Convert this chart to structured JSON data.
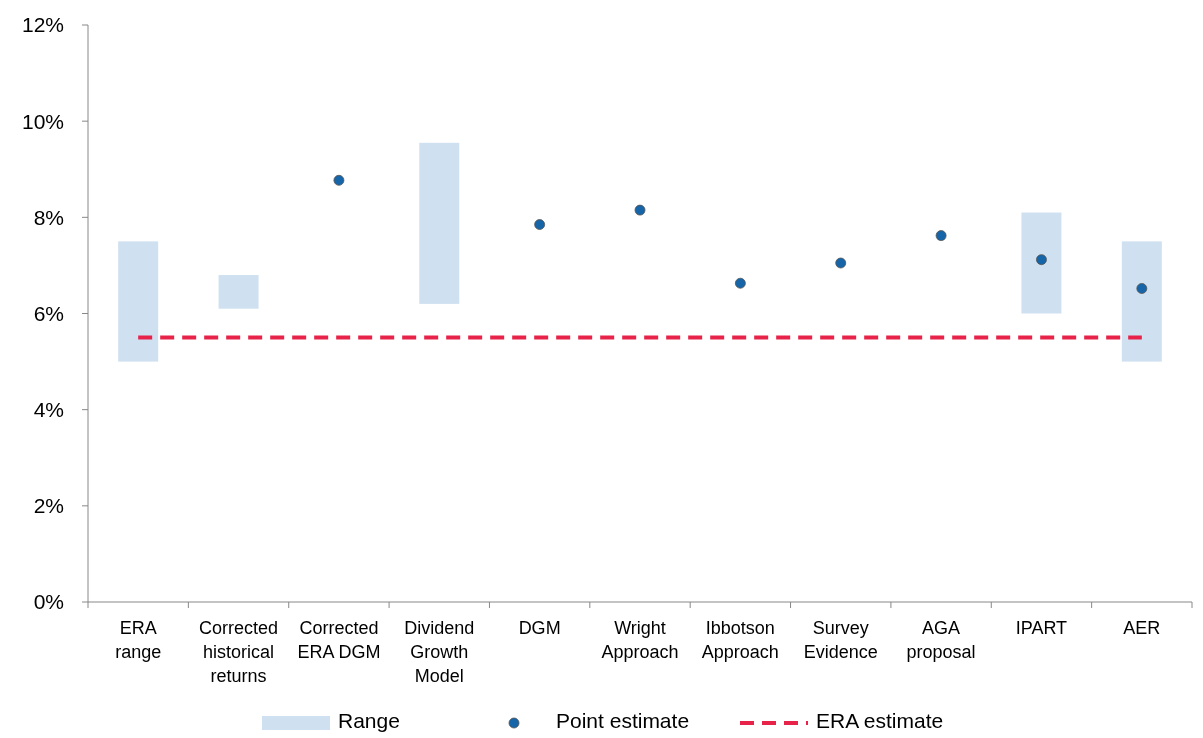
{
  "chart_data": {
    "type": "bar",
    "categories": [
      "ERA range",
      "Corrected historical returns",
      "Corrected ERA DGM",
      "Dividend Growth Model",
      "DGM",
      "Wright Approach",
      "Ibbotson Approach",
      "Survey Evidence",
      "AGA proposal",
      "IPART",
      "AER"
    ],
    "series": [
      {
        "name": "Range",
        "color": "#cfe0f1",
        "base": [
          5.0,
          6.1,
          null,
          6.2,
          null,
          null,
          null,
          null,
          null,
          6.0,
          5.0
        ],
        "values": [
          2.5,
          0.7,
          null,
          3.35,
          null,
          null,
          null,
          null,
          null,
          2.1,
          2.5
        ]
      },
      {
        "name": "Point estimate",
        "type": "scatter",
        "color": "#1565a8",
        "marker": "circle",
        "values": [
          null,
          null,
          8.77,
          null,
          7.85,
          8.15,
          6.63,
          7.05,
          7.62,
          7.12,
          6.52
        ]
      },
      {
        "name": "ERA estimate",
        "type": "line",
        "color": "#e8234a",
        "line_style": "dashed",
        "marker": "none",
        "values": [
          5.5,
          5.5,
          5.5,
          5.5,
          5.5,
          5.5,
          5.5,
          5.5,
          5.5,
          5.5,
          5.5
        ]
      }
    ],
    "ylim": [
      0,
      12
    ],
    "yticks": [
      {
        "value": 0,
        "label": "0%"
      },
      {
        "value": 2,
        "label": "2%"
      },
      {
        "value": 4,
        "label": "4%"
      },
      {
        "value": 6,
        "label": "6%"
      },
      {
        "value": 8,
        "label": "8%"
      },
      {
        "value": 10,
        "label": "10%"
      },
      {
        "value": 12,
        "label": "12%"
      }
    ],
    "grid": false,
    "legend": "bottom"
  }
}
